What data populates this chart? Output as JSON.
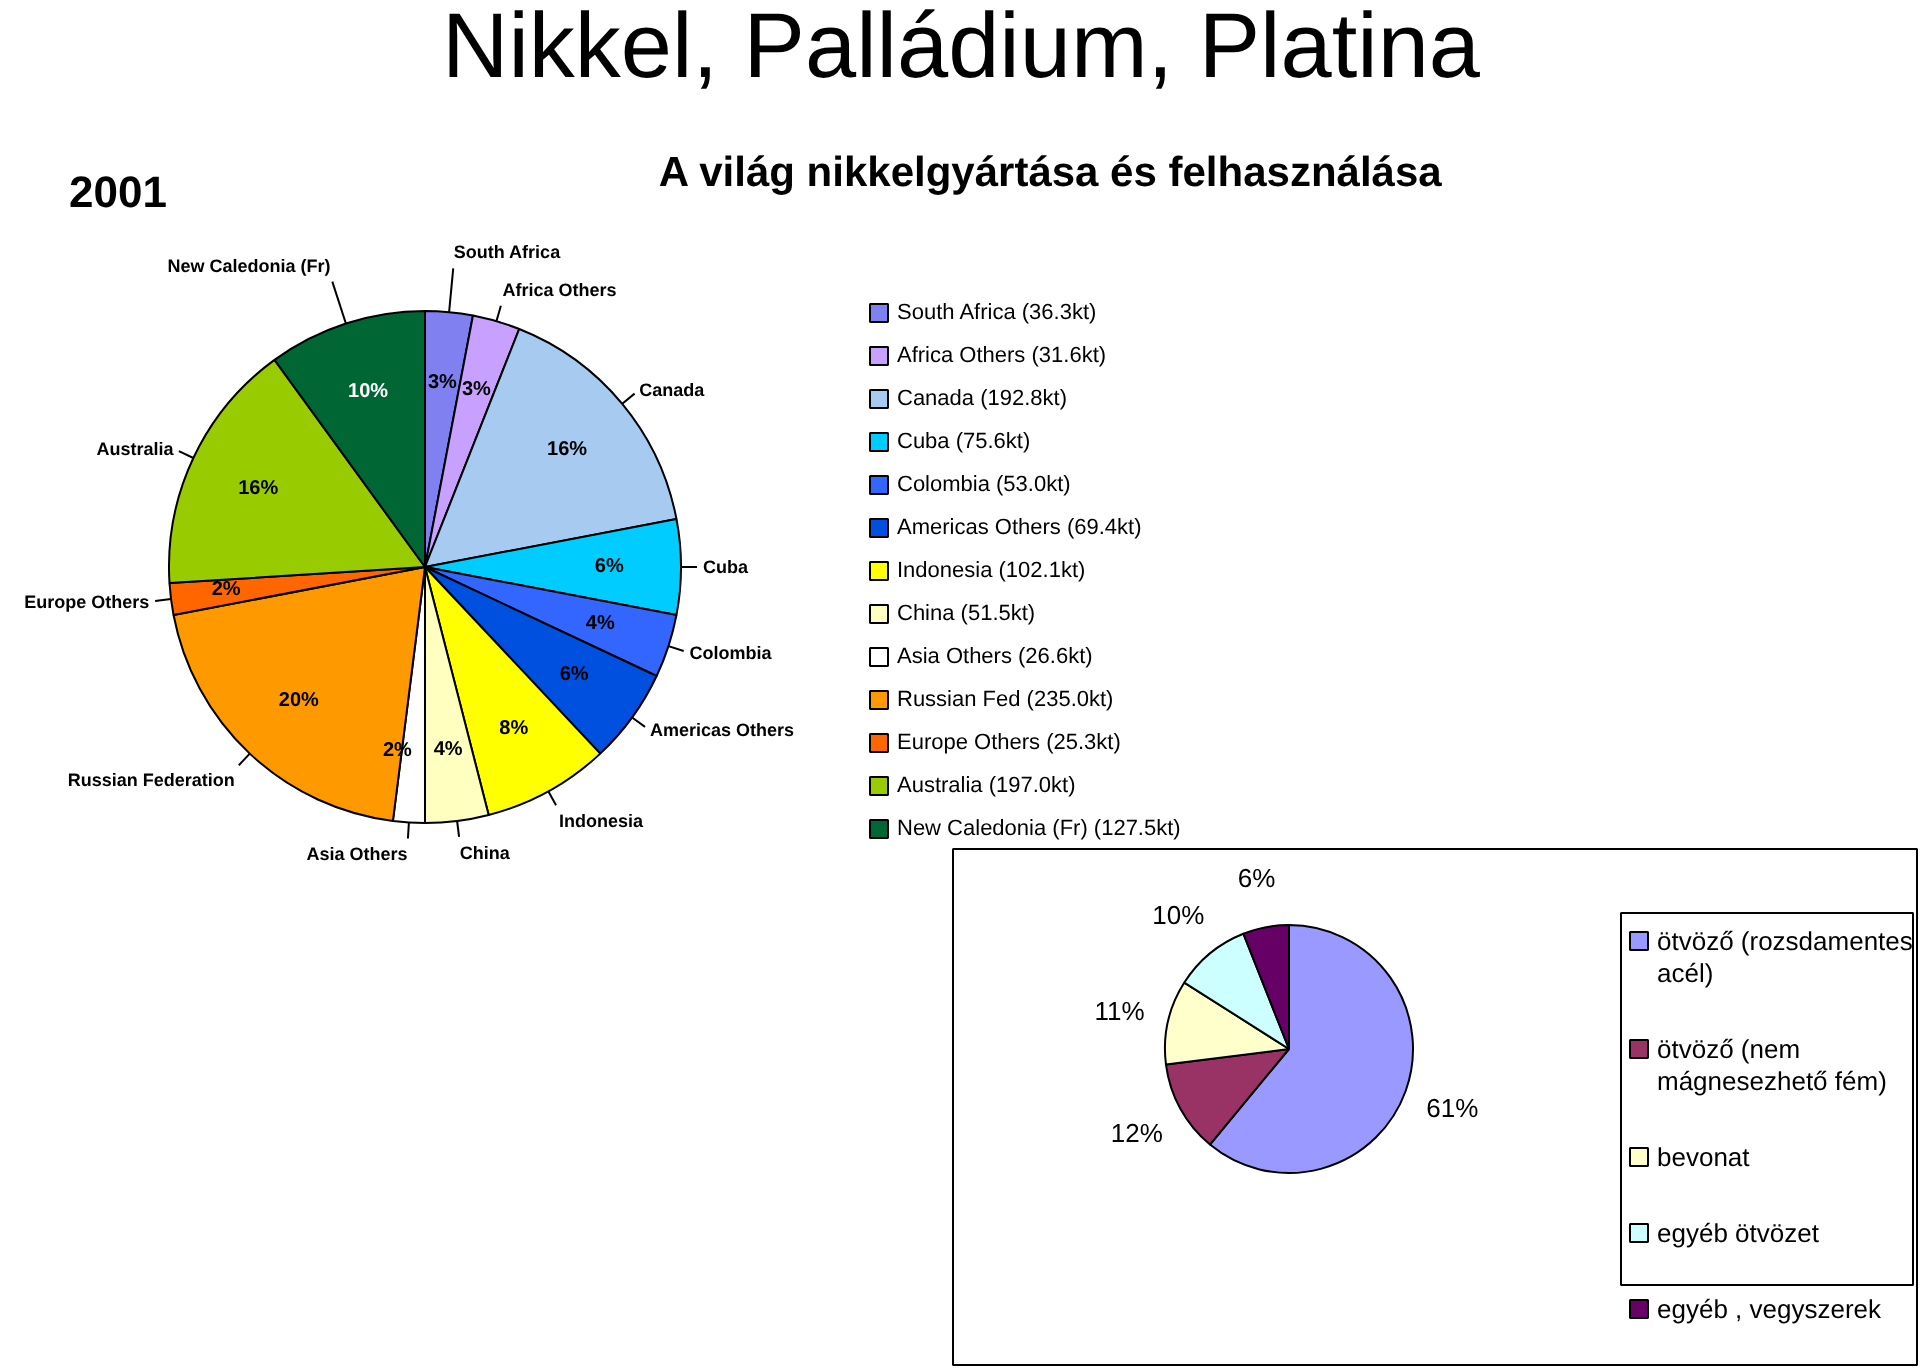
{
  "chart_data": [
    {
      "type": "pie",
      "title": "Nikkel, Palládium, Platina",
      "subtitle": "A világ nikkelgyártása és felhasználása",
      "annotations": [
        "2001",
        "South Africa",
        "Africa Others",
        "Canada",
        "Cuba",
        "Colombia",
        "Americas Others",
        "Indonesia",
        "China",
        "Asia Others",
        "Russian Federation",
        "Europe Others",
        "Australia",
        "New Caledonia (Fr)"
      ],
      "categories": [
        "South Africa (36.3kt)",
        "Africa Others (31.6kt)",
        "Canada (192.8kt)",
        "Cuba (75.6kt)",
        "Colombia (53.0kt)",
        "Americas Others (69.4kt)",
        "Indonesia (102.1kt)",
        "China (51.5kt)",
        "Asia Others (26.6kt)",
        "Russian Fed (235.0kt)",
        "Europe Others (25.3kt)",
        "Australia (197.0kt)",
        "New Caledonia (Fr) (127.5kt)"
      ],
      "values": [
        3,
        3,
        16,
        6,
        4,
        6,
        8,
        4,
        2,
        20,
        2,
        16,
        10
      ],
      "colors": [
        "#8080f0",
        "#c8a0ff",
        "#a6caf0",
        "#00ccff",
        "#3366ff",
        "#0050e0",
        "#ffff00",
        "#ffffc0",
        "#ffffff",
        "#ff9900",
        "#ff6600",
        "#99cc00",
        "#006633"
      ],
      "value_labels": [
        "3%",
        "3%",
        "16%",
        "6%",
        "4%",
        "6%",
        "8%",
        "4%",
        "2%",
        "20%",
        "2%",
        "16%",
        "10%"
      ],
      "legend": "right"
    },
    {
      "type": "pie",
      "categories": [
        "ötvöző (rozsdamentes acél)",
        "ötvöző (nem mágnesezhető fém)",
        "bevonat",
        "egyéb ötvözet",
        "egyéb , vegyszerek"
      ],
      "values": [
        61,
        12,
        11,
        10,
        6
      ],
      "value_labels": [
        "61%",
        "12%",
        "11%",
        "10%",
        "6%"
      ],
      "colors": [
        "#9999ff",
        "#993366",
        "#ffffcc",
        "#ccffff",
        "#660066"
      ],
      "legend": "right"
    }
  ]
}
